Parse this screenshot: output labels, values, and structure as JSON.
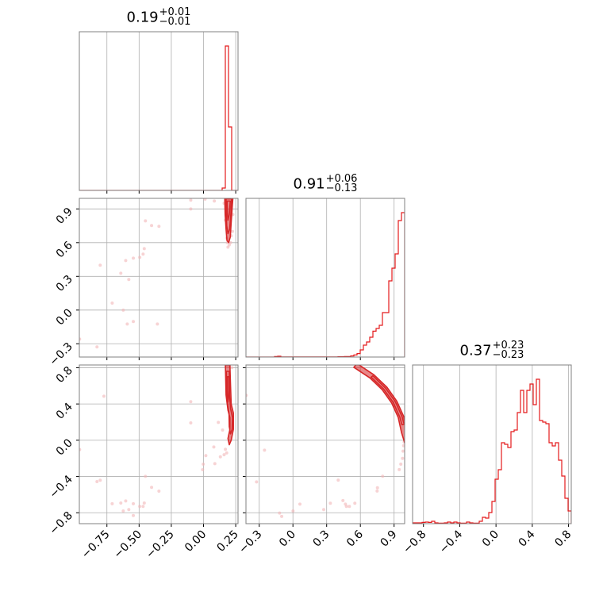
{
  "chart_data": {
    "type": "corner",
    "colors": {
      "line": "#e41a1c",
      "contour": "#d62728",
      "samples": "#f2b6b8",
      "grid": "#b0b0b0",
      "spine": "#808080"
    },
    "grid": true,
    "parameters": [
      {
        "title": {
          "value": "0.19",
          "plus": "+0.01",
          "minus": "−0.01"
        },
        "range": [
          -0.964,
          0.268
        ],
        "ticks": [
          -0.75,
          -0.5,
          -0.25,
          0.0,
          0.25
        ],
        "tick_labels": [
          "−0.75",
          "−0.50",
          "−0.25",
          "0.00",
          "0.25"
        ],
        "hist": [
          0,
          0,
          0,
          0,
          0,
          0,
          0,
          0,
          0,
          0,
          0,
          0,
          0,
          0,
          0,
          0,
          0,
          0,
          0,
          0,
          0,
          0,
          0,
          0,
          0,
          0,
          0,
          0,
          0,
          0,
          0,
          0,
          0,
          0,
          0,
          0,
          0,
          0,
          0,
          0,
          0,
          0,
          0,
          0,
          0,
          0.015,
          0.91,
          0.4,
          0,
          0
        ]
      },
      {
        "title": {
          "value": "0.91",
          "plus": "+0.06",
          "minus": "−0.13"
        },
        "range": [
          -0.418,
          0.994
        ],
        "ticks": [
          -0.3,
          0.0,
          0.3,
          0.6,
          0.9
        ],
        "tick_labels": [
          "−0.3",
          "0.0",
          "0.3",
          "0.6",
          "0.9"
        ],
        "hist": [
          0,
          0,
          0,
          0,
          0,
          0,
          0,
          0,
          0,
          0.003,
          0.005,
          0.001,
          0.001,
          0.001,
          0.001,
          0.001,
          0.001,
          0.001,
          0.001,
          0.001,
          0.001,
          0.001,
          0.001,
          0.001,
          0.001,
          0.001,
          0.001,
          0.001,
          0.001,
          0.002,
          0.002,
          0.003,
          0.003,
          0.007,
          0.013,
          0.022,
          0.045,
          0.075,
          0.095,
          0.125,
          0.163,
          0.18,
          0.2,
          0.28,
          0.28,
          0.48,
          0.56,
          0.65,
          0.86,
          0.91
        ]
      },
      {
        "title": {
          "value": "0.37",
          "plus": "+0.23",
          "minus": "−0.23"
        },
        "range": [
          -0.92,
          0.83
        ],
        "ticks": [
          -0.8,
          -0.4,
          0.0,
          0.4,
          0.8
        ],
        "tick_labels": [
          "−0.8",
          "−0.4",
          "0.0",
          "0.4",
          "0.8"
        ],
        "hist": [
          0.005,
          0.005,
          0.005,
          0.008,
          0.01,
          0.008,
          0.015,
          0.005,
          0.003,
          0.003,
          0.005,
          0.01,
          0.005,
          0.01,
          0.005,
          0.003,
          0.003,
          0.01,
          0.005,
          0.003,
          0.003,
          0.015,
          0.04,
          0.035,
          0.07,
          0.14,
          0.28,
          0.34,
          0.51,
          0.5,
          0.48,
          0.58,
          0.59,
          0.7,
          0.84,
          0.7,
          0.84,
          0.88,
          0.75,
          0.91,
          0.65,
          0.64,
          0.63,
          0.51,
          0.49,
          0.51,
          0.4,
          0.3,
          0.16,
          0.08
        ]
      }
    ],
    "pairs": [
      {
        "x_param": 0,
        "y_param": 1,
        "samples": [
          [
            -0.451,
            0.794
          ],
          [
            -0.403,
            0.752
          ],
          [
            -0.346,
            0.745
          ],
          [
            -0.46,
            0.547
          ],
          [
            -0.469,
            0.498
          ],
          [
            -0.495,
            0.469
          ],
          [
            -0.545,
            0.462
          ],
          [
            -0.604,
            0.441
          ],
          [
            -0.802,
            0.399
          ],
          [
            -0.642,
            0.328
          ],
          [
            -0.58,
            0.272
          ],
          [
            -0.709,
            0.062
          ],
          [
            -0.623,
            -0.001
          ],
          [
            -0.592,
            -0.124
          ],
          [
            -0.545,
            -0.102
          ],
          [
            -0.358,
            -0.124
          ],
          [
            -0.827,
            -0.328
          ],
          [
            -0.962,
            -0.258
          ],
          [
            -0.099,
            0.978
          ],
          [
            -0.099,
            0.9
          ],
          [
            0.012,
            0.987
          ],
          [
            0.084,
            0.97
          ],
          [
            0.2,
            0.58
          ],
          [
            0.19,
            0.56
          ],
          [
            0.21,
            0.6
          ],
          [
            0.18,
            0.64
          ],
          [
            0.225,
            0.7
          ],
          [
            0.17,
            0.8
          ],
          [
            0.228,
            0.85
          ],
          [
            0.16,
            0.95
          ],
          [
            0.215,
            0.66
          ],
          [
            0.185,
            0.6
          ]
        ],
        "contours": [
          [
            [
              0.165,
              0.994
            ],
            [
              0.228,
              0.994
            ],
            [
              0.222,
              0.9
            ],
            [
              0.215,
              0.78
            ],
            [
              0.208,
              0.65
            ],
            [
              0.195,
              0.6
            ],
            [
              0.182,
              0.62
            ],
            [
              0.175,
              0.72
            ],
            [
              0.168,
              0.85
            ]
          ],
          [
            [
              0.175,
              0.99
            ],
            [
              0.218,
              0.99
            ],
            [
              0.212,
              0.85
            ],
            [
              0.203,
              0.72
            ],
            [
              0.19,
              0.68
            ],
            [
              0.18,
              0.75
            ],
            [
              0.176,
              0.88
            ]
          ],
          [
            [
              0.183,
              0.97
            ],
            [
              0.208,
              0.97
            ],
            [
              0.2,
              0.85
            ],
            [
              0.19,
              0.8
            ],
            [
              0.185,
              0.87
            ]
          ]
        ]
      },
      {
        "x_param": 0,
        "y_param": 2,
        "samples": [
          [
            -0.773,
            0.486
          ],
          [
            -0.827,
            -0.456
          ],
          [
            -0.802,
            -0.441
          ],
          [
            -0.451,
            -0.398
          ],
          [
            -0.403,
            -0.52
          ],
          [
            -0.346,
            -0.561
          ],
          [
            -0.709,
            -0.7
          ],
          [
            -0.642,
            -0.692
          ],
          [
            -0.604,
            -0.669
          ],
          [
            -0.623,
            -0.78
          ],
          [
            -0.58,
            -0.765
          ],
          [
            -0.545,
            -0.7
          ],
          [
            -0.545,
            -0.83
          ],
          [
            -0.495,
            -0.73
          ],
          [
            -0.469,
            -0.73
          ],
          [
            -0.46,
            -0.692
          ],
          [
            -0.099,
            0.425
          ],
          [
            -0.099,
            0.191
          ],
          [
            -0.002,
            -0.264
          ],
          [
            -0.007,
            -0.325
          ],
          [
            0.018,
            -0.17
          ],
          [
            0.088,
            -0.258
          ],
          [
            0.08,
            -0.074
          ],
          [
            0.131,
            -0.183
          ],
          [
            0.115,
            0.197
          ],
          [
            0.148,
            0.112
          ],
          [
            -0.962,
            -0.103
          ],
          [
            0.17,
            -0.1
          ],
          [
            0.18,
            -0.14
          ],
          [
            0.16,
            -0.16
          ],
          [
            0.2,
            0.82
          ],
          [
            0.22,
            0.8
          ],
          [
            0.175,
            0.81
          ]
        ],
        "contours": [
          [
            [
              0.17,
              0.83
            ],
            [
              0.205,
              0.83
            ],
            [
              0.21,
              0.6
            ],
            [
              0.215,
              0.4
            ],
            [
              0.232,
              0.3
            ],
            [
              0.232,
              0.12
            ],
            [
              0.215,
              0.0
            ],
            [
              0.2,
              -0.05
            ],
            [
              0.19,
              0.02
            ],
            [
              0.205,
              0.12
            ],
            [
              0.205,
              0.25
            ],
            [
              0.19,
              0.33
            ],
            [
              0.175,
              0.5
            ],
            [
              0.172,
              0.7
            ]
          ],
          [
            [
              0.178,
              0.76
            ],
            [
              0.2,
              0.76
            ],
            [
              0.202,
              0.5
            ],
            [
              0.21,
              0.35
            ],
            [
              0.225,
              0.25
            ],
            [
              0.222,
              0.12
            ],
            [
              0.21,
              0.07
            ],
            [
              0.2,
              0.15
            ],
            [
              0.198,
              0.3
            ],
            [
              0.185,
              0.42
            ],
            [
              0.18,
              0.6
            ]
          ],
          [
            [
              0.185,
              0.7
            ],
            [
              0.197,
              0.7
            ],
            [
              0.197,
              0.5
            ],
            [
              0.19,
              0.42
            ],
            [
              0.185,
              0.55
            ]
          ]
        ]
      },
      {
        "x_param": 1,
        "y_param": 2,
        "samples": [
          [
            -0.253,
            -0.109
          ],
          [
            -0.324,
            -0.459
          ],
          [
            -0.119,
            -0.803
          ],
          [
            -0.1,
            -0.84
          ],
          [
            0.001,
            -0.78
          ],
          [
            0.062,
            -0.704
          ],
          [
            0.274,
            -0.765
          ],
          [
            0.333,
            -0.695
          ],
          [
            0.403,
            -0.44
          ],
          [
            0.445,
            -0.665
          ],
          [
            0.467,
            -0.704
          ],
          [
            0.476,
            -0.73
          ],
          [
            0.502,
            -0.73
          ],
          [
            0.551,
            -0.695
          ],
          [
            0.752,
            -0.524
          ],
          [
            0.749,
            -0.56
          ],
          [
            0.798,
            -0.397
          ],
          [
            0.946,
            -0.324
          ],
          [
            0.96,
            -0.264
          ],
          [
            0.975,
            -0.2
          ],
          [
            0.98,
            -0.12
          ],
          [
            0.985,
            -0.06
          ],
          [
            0.99,
            -0.02
          ],
          [
            -0.416,
            0.495
          ]
        ],
        "contours": [
          [
            [
              0.57,
              0.846
            ],
            [
              0.721,
              0.721
            ],
            [
              0.836,
              0.585
            ],
            [
              0.924,
              0.431
            ],
            [
              0.985,
              0.264
            ],
            [
              1.016,
              0.089
            ],
            [
              1.0,
              -0.05
            ],
            [
              0.966,
              0.085
            ],
            [
              0.937,
              0.251
            ],
            [
              0.879,
              0.41
            ],
            [
              0.795,
              0.556
            ],
            [
              0.686,
              0.686
            ],
            [
              0.542,
              0.804
            ]
          ],
          [
            [
              0.711,
              0.711
            ],
            [
              0.823,
              0.576
            ],
            [
              0.911,
              0.425
            ],
            [
              0.971,
              0.26
            ],
            [
              0.99,
              0.175
            ],
            [
              0.97,
              0.171
            ],
            [
              0.951,
              0.255
            ],
            [
              0.893,
              0.416
            ],
            [
              0.807,
              0.565
            ],
            [
              0.696,
              0.696
            ]
          ]
        ]
      }
    ]
  }
}
